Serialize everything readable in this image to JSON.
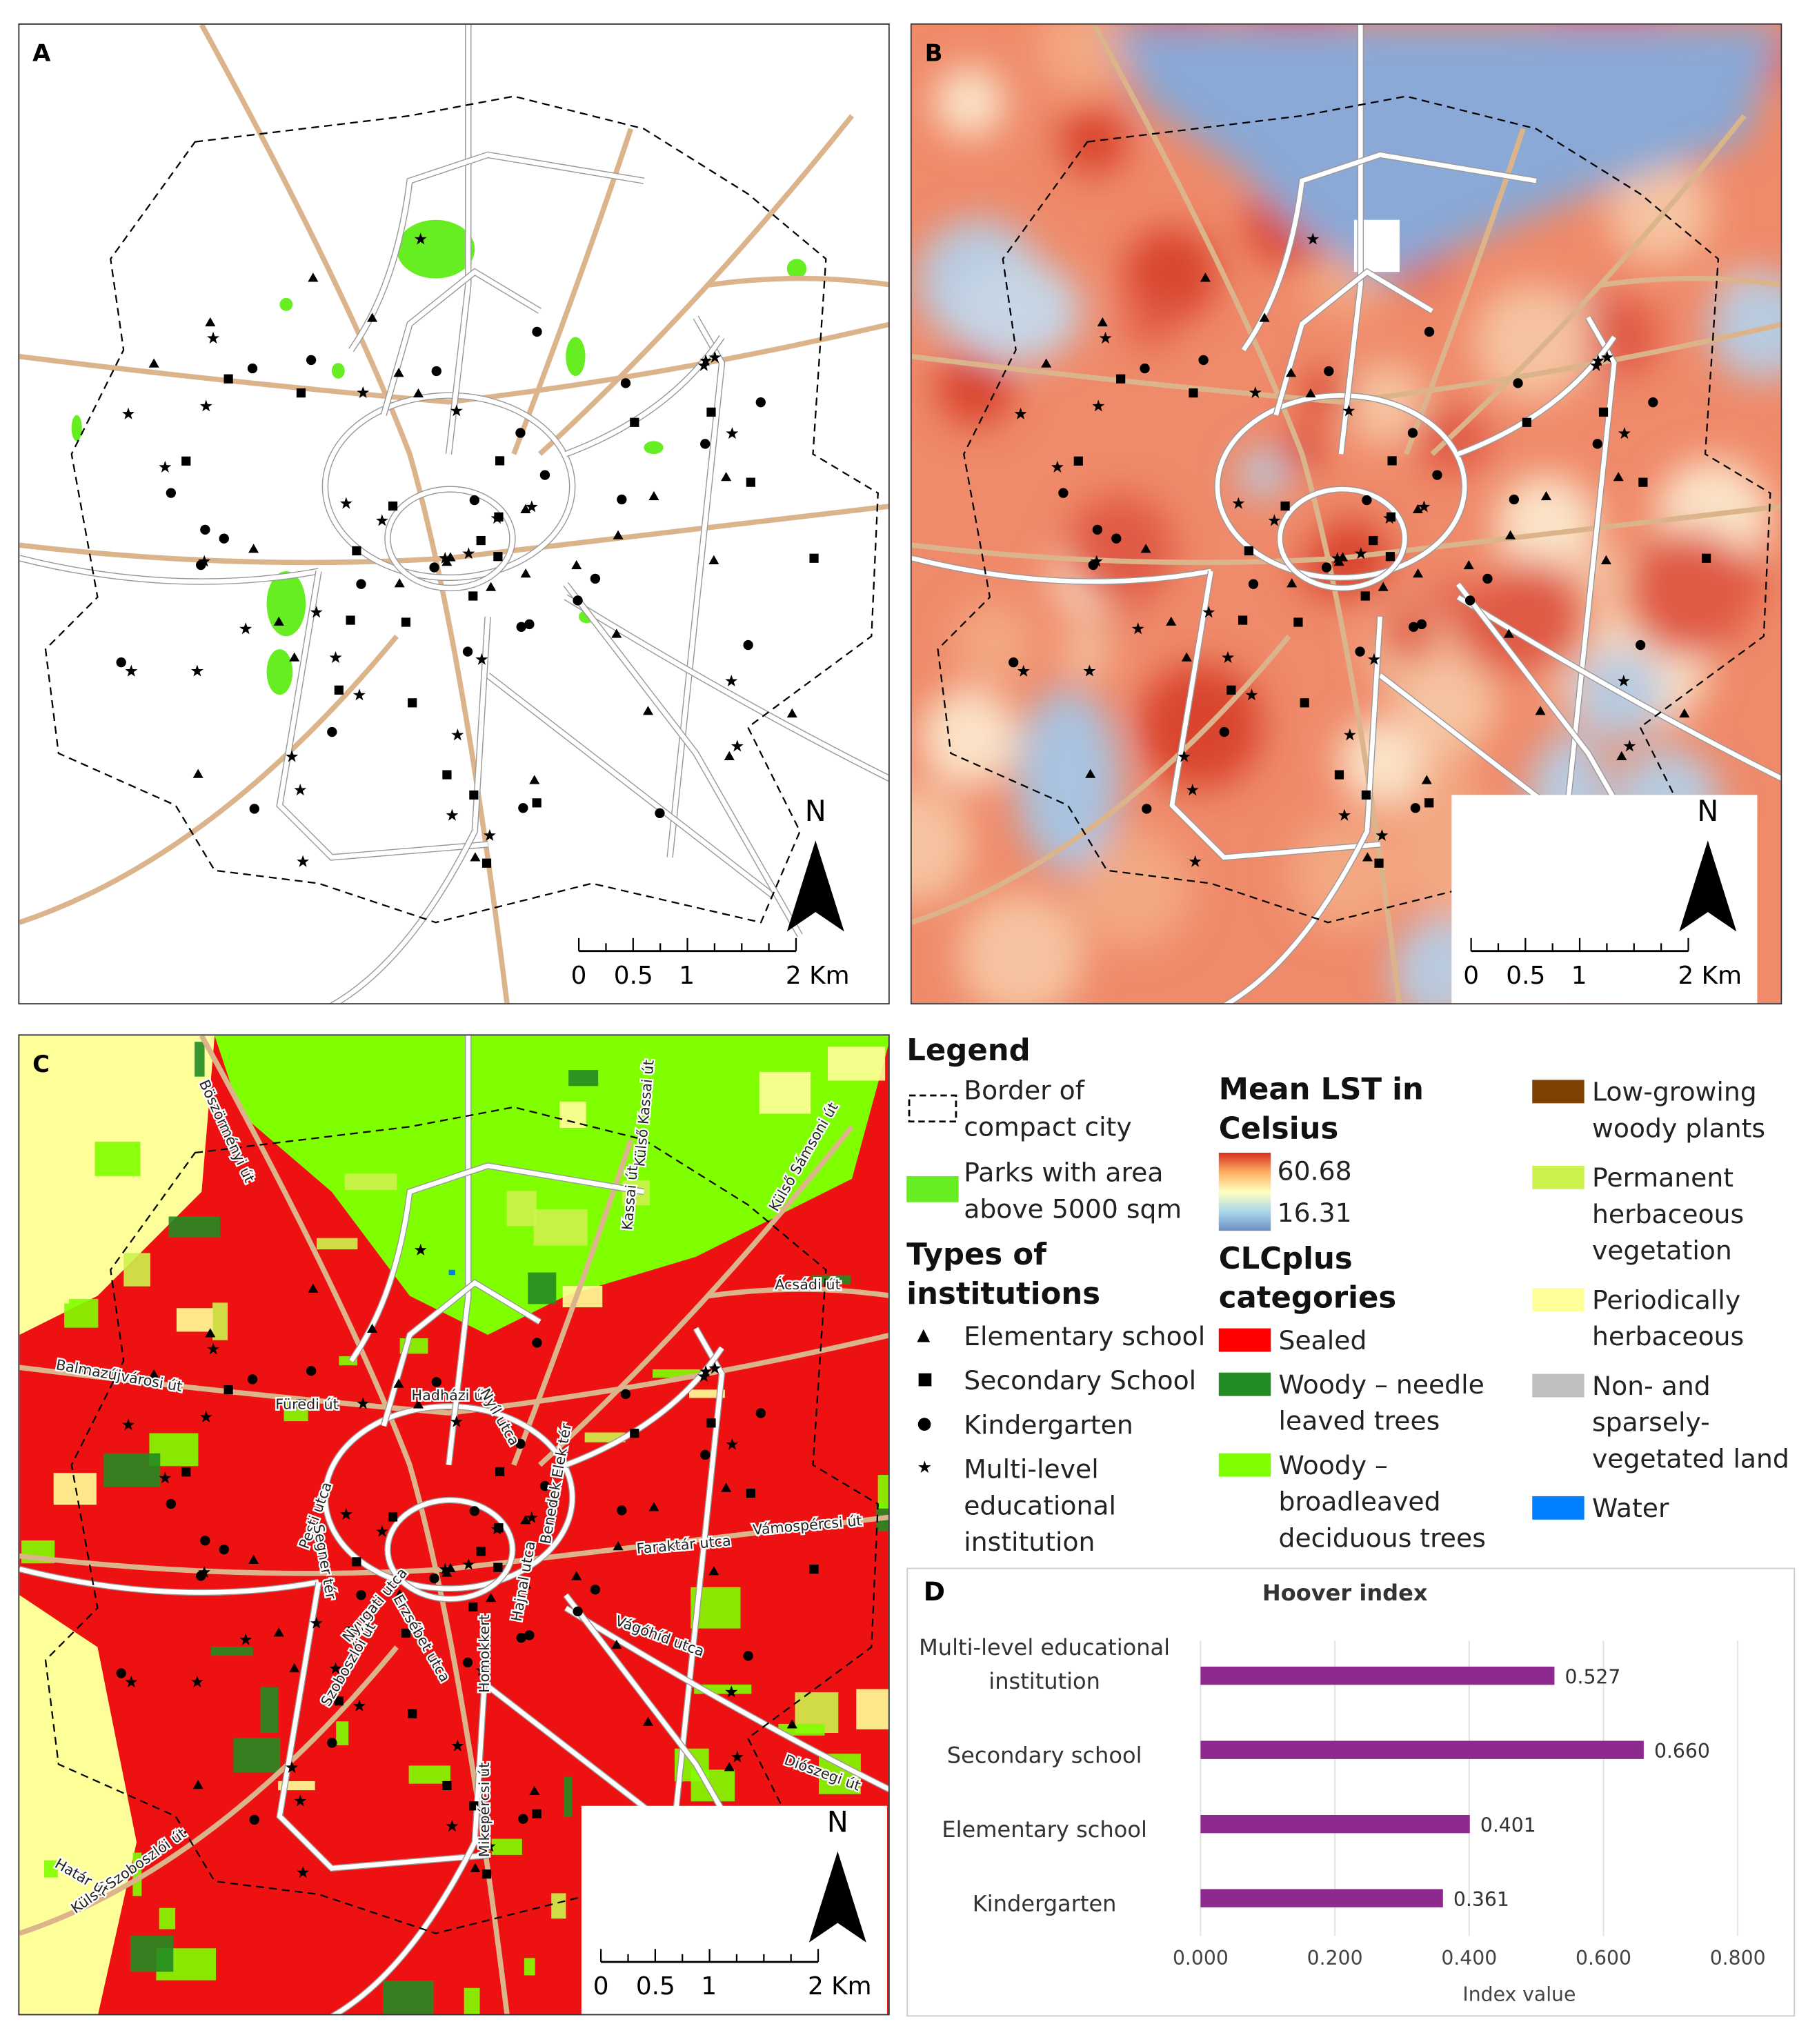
{
  "panels": {
    "a": {
      "label": "A"
    },
    "b": {
      "label": "B"
    },
    "c": {
      "label": "C",
      "road_labels": [
        "Böszörményi út",
        "Külső Kassai út",
        "Kassai út",
        "Külső Sámsoni út",
        "Ácsádi út",
        "Balmazújvárosi út",
        "Füredi út",
        "Hadházi út",
        "Nyíl utca",
        "Benedek Elek tér",
        "Vámospércsi út",
        "Faraktár utca",
        "Vágóhíd utca",
        "Pesti utca",
        "Segner tér",
        "Nyugati utca",
        "Erzsébet utca",
        "Szoboszlói út",
        "Homokkert",
        "Hajnal utca",
        "Mikepércsi út",
        "Diószegi út",
        "Külső Szoboszlói út",
        "Határ út"
      ]
    }
  },
  "scale_bar": {
    "labels": [
      "0",
      "0.5",
      "1",
      "2 Km"
    ]
  },
  "north": "N",
  "legend": {
    "title": "Legend",
    "border": "Border of compact city",
    "parks": "Parks with area above 5000 sqm",
    "types_title": "Types of institutions",
    "types": [
      "Elementary school",
      "Secondary School",
      "Kindergarten",
      "Multi-level educational institution"
    ],
    "lst_title": "Mean LST in Celsius",
    "lst_max": 60.68,
    "lst_min": 16.31,
    "clc_title": "CLCplus categories",
    "clc": [
      {
        "name": "Sealed",
        "color": "#ff0000"
      },
      {
        "name": "Woody – needle leaved trees",
        "color": "#238b23"
      },
      {
        "name": "Woody – broadleaved deciduous trees",
        "color": "#80ff00"
      },
      {
        "name": "Low-growing woody plants",
        "color": "#804000"
      },
      {
        "name": "Permanent herbaceous vegetation",
        "color": "#ccf24d"
      },
      {
        "name": "Periodically herbaceous",
        "color": "#ffff99"
      },
      {
        "name": "Non- and sparsely-vegetated land",
        "color": "#c0c0c0"
      },
      {
        "name": "Water",
        "color": "#0080ff"
      }
    ]
  },
  "chart_data": {
    "type": "bar",
    "orientation": "horizontal",
    "panel_label": "D",
    "title": "Hoover index",
    "xlabel": "Index value",
    "categories": [
      "Multi-level educational institution",
      "Secondary school",
      "Elementary school",
      "Kindergarten"
    ],
    "values": [
      0.527,
      0.66,
      0.401,
      0.361
    ],
    "value_labels": [
      "0.527",
      "0.660",
      "0.401",
      "0.361"
    ],
    "color": "#8e2a8e",
    "xlim": [
      0,
      0.8
    ],
    "xticks": [
      {
        "value": 0,
        "label": "0.000"
      },
      {
        "value": 0.2,
        "label": "0.200"
      },
      {
        "value": 0.4,
        "label": "0.400"
      },
      {
        "value": 0.6,
        "label": "0.600"
      },
      {
        "value": 0.8,
        "label": "0.800"
      }
    ],
    "grid": true
  }
}
